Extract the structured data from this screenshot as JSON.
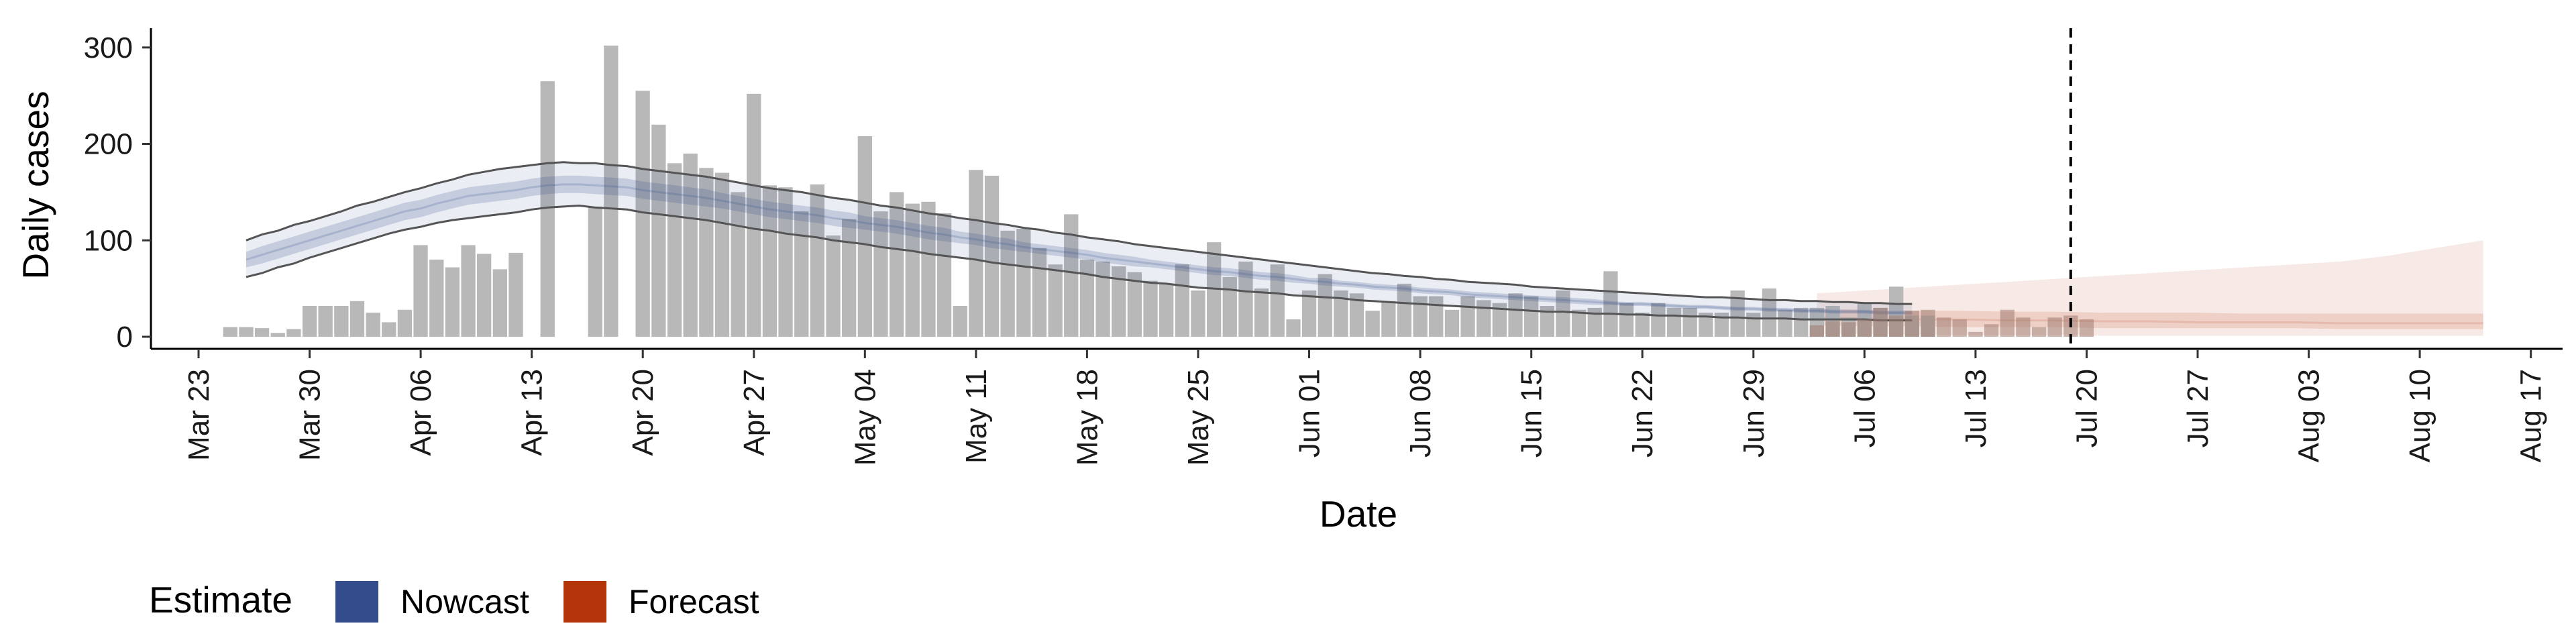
{
  "chart_data": {
    "type": "bar",
    "xlabel": "Date",
    "ylabel": "Daily cases",
    "ylim": [
      0,
      320
    ],
    "xlim": [
      "2020-03-20",
      "2020-08-19"
    ],
    "x_ticks": [
      "Mar 23",
      "Mar 30",
      "Apr 06",
      "Apr 13",
      "Apr 20",
      "Apr 27",
      "May 04",
      "May 11",
      "May 18",
      "May 25",
      "Jun 01",
      "Jun 08",
      "Jun 15",
      "Jun 22",
      "Jun 29",
      "Jul 06",
      "Jul 13",
      "Jul 20",
      "Jul 27",
      "Aug 03",
      "Aug 10",
      "Aug 17"
    ],
    "x_tick_dates": [
      "2020-03-23",
      "2020-03-30",
      "2020-04-06",
      "2020-04-13",
      "2020-04-20",
      "2020-04-27",
      "2020-05-04",
      "2020-05-11",
      "2020-05-18",
      "2020-05-25",
      "2020-06-01",
      "2020-06-08",
      "2020-06-15",
      "2020-06-22",
      "2020-06-29",
      "2020-07-06",
      "2020-07-13",
      "2020-07-20",
      "2020-07-27",
      "2020-08-03",
      "2020-08-10",
      "2020-08-17"
    ],
    "y_ticks": [
      0,
      100,
      200,
      300
    ],
    "vline_date": "2020-07-19",
    "bars": {
      "start_date": "2020-03-25",
      "values": [
        10,
        10,
        9,
        4,
        8,
        32,
        32,
        32,
        37,
        25,
        15,
        28,
        95,
        80,
        72,
        95,
        86,
        70,
        87,
        0,
        265,
        0,
        0,
        135,
        302,
        0,
        255,
        220,
        180,
        190,
        175,
        170,
        150,
        252,
        157,
        155,
        130,
        158,
        105,
        122,
        208,
        130,
        150,
        138,
        140,
        128,
        32,
        173,
        167,
        110,
        112,
        92,
        75,
        127,
        80,
        78,
        73,
        67,
        58,
        55,
        75,
        48,
        98,
        62,
        78,
        50,
        75,
        18,
        48,
        65,
        48,
        45,
        27,
        37,
        55,
        42,
        42,
        28,
        42,
        38,
        35,
        45,
        42,
        32,
        48,
        28,
        30,
        68,
        35,
        25,
        35,
        30,
        30,
        25,
        25,
        48,
        25,
        50,
        28,
        30,
        30,
        32,
        20,
        35,
        30,
        52,
        22,
        22
      ],
      "forecast_start_date": "2020-07-03",
      "forecast_values": [
        12,
        16,
        15,
        18,
        30,
        22,
        27,
        28,
        20,
        18,
        5,
        13,
        28,
        20,
        10,
        20,
        22,
        18
      ]
    },
    "series": [
      {
        "name": "Nowcast",
        "color": "#334D8C",
        "start_date": "2020-03-26",
        "step_days": 1,
        "median": [
          80,
          85,
          90,
          95,
          100,
          105,
          110,
          115,
          120,
          125,
          130,
          133,
          138,
          142,
          146,
          148,
          150,
          152,
          155,
          157,
          158,
          158,
          157,
          156,
          155,
          152,
          150,
          148,
          146,
          144,
          141,
          138,
          135,
          132,
          130,
          128,
          126,
          123,
          121,
          118,
          116,
          114,
          111,
          108,
          106,
          103,
          101,
          98,
          96,
          93,
          91,
          89,
          87,
          85,
          82,
          80,
          78,
          76,
          74,
          72,
          70,
          68,
          67,
          65,
          63,
          62,
          60,
          58,
          57,
          55,
          54,
          52,
          51,
          50,
          48,
          47,
          46,
          44,
          43,
          42,
          41,
          40,
          39,
          38,
          37,
          36,
          35,
          34,
          34,
          33,
          32,
          31,
          31,
          30,
          29,
          29,
          28,
          28,
          27,
          27,
          26,
          26,
          26,
          25,
          25,
          25
        ],
        "inner_lo": [
          72,
          76,
          81,
          86,
          91,
          96,
          101,
          106,
          111,
          116,
          121,
          124,
          129,
          133,
          137,
          139,
          141,
          143,
          146,
          148,
          149,
          149,
          148,
          147,
          146,
          143,
          141,
          139,
          137,
          135,
          133,
          130,
          127,
          124,
          122,
          120,
          118,
          115,
          113,
          111,
          109,
          107,
          104,
          101,
          99,
          97,
          95,
          92,
          90,
          88,
          86,
          84,
          82,
          80,
          77,
          75,
          73,
          72,
          70,
          68,
          66,
          64,
          63,
          61,
          59,
          58,
          56,
          55,
          53,
          52,
          51,
          49,
          48,
          47,
          45,
          44,
          43,
          41,
          40,
          39,
          38,
          37,
          36,
          35,
          34,
          33,
          33,
          32,
          32,
          31,
          30,
          29,
          29,
          28,
          27,
          27,
          26,
          26,
          25,
          25,
          24,
          24,
          24,
          23,
          23,
          23
        ],
        "inner_hi": [
          88,
          94,
          99,
          104,
          109,
          114,
          119,
          124,
          129,
          134,
          139,
          142,
          147,
          151,
          155,
          157,
          159,
          161,
          164,
          166,
          167,
          167,
          166,
          165,
          164,
          161,
          159,
          157,
          155,
          153,
          149,
          146,
          143,
          140,
          138,
          136,
          134,
          131,
          129,
          125,
          123,
          121,
          118,
          115,
          113,
          109,
          107,
          104,
          102,
          98,
          96,
          94,
          92,
          90,
          87,
          85,
          83,
          80,
          78,
          76,
          74,
          72,
          71,
          69,
          67,
          66,
          64,
          61,
          61,
          58,
          57,
          55,
          54,
          53,
          51,
          50,
          49,
          47,
          46,
          45,
          44,
          43,
          42,
          41,
          40,
          39,
          37,
          36,
          36,
          35,
          34,
          33,
          33,
          32,
          31,
          31,
          30,
          30,
          29,
          29,
          28,
          28,
          28,
          27,
          27,
          27
        ],
        "outer_lo": [
          62,
          66,
          72,
          76,
          82,
          87,
          92,
          97,
          102,
          107,
          111,
          114,
          118,
          121,
          123,
          125,
          127,
          129,
          132,
          134,
          135,
          136,
          134,
          133,
          132,
          129,
          127,
          125,
          123,
          121,
          118,
          115,
          112,
          110,
          107,
          105,
          103,
          100,
          98,
          96,
          93,
          91,
          89,
          86,
          84,
          82,
          80,
          77,
          75,
          73,
          71,
          69,
          67,
          65,
          62,
          60,
          58,
          56,
          55,
          53,
          51,
          50,
          49,
          47,
          46,
          45,
          43,
          42,
          41,
          40,
          38,
          37,
          36,
          35,
          34,
          33,
          32,
          31,
          30,
          29,
          28,
          27,
          26,
          26,
          25,
          24,
          24,
          23,
          23,
          22,
          22,
          21,
          21,
          20,
          20,
          19,
          19,
          19,
          18,
          18,
          18,
          18,
          18,
          17,
          17,
          17
        ],
        "outer_hi": [
          100,
          106,
          110,
          116,
          120,
          125,
          130,
          136,
          140,
          145,
          150,
          154,
          159,
          163,
          168,
          171,
          174,
          176,
          178,
          180,
          181,
          180,
          180,
          178,
          177,
          174,
          172,
          170,
          168,
          166,
          163,
          160,
          157,
          154,
          152,
          150,
          147,
          144,
          142,
          139,
          136,
          134,
          131,
          128,
          126,
          123,
          121,
          118,
          116,
          113,
          111,
          108,
          106,
          103,
          101,
          99,
          96,
          94,
          92,
          90,
          88,
          86,
          84,
          82,
          80,
          78,
          76,
          74,
          72,
          70,
          68,
          66,
          65,
          63,
          62,
          60,
          59,
          57,
          56,
          55,
          54,
          52,
          51,
          50,
          49,
          48,
          47,
          46,
          45,
          44,
          43,
          42,
          41,
          41,
          40,
          39,
          38,
          38,
          37,
          37,
          36,
          36,
          35,
          35,
          34,
          34
        ]
      },
      {
        "name": "Forecast",
        "color": "#B5350B",
        "start_date": "2020-07-03",
        "step_days": 3,
        "median": [
          20,
          19,
          18,
          18,
          17,
          17,
          16,
          16,
          15,
          15,
          15,
          14,
          14,
          14,
          14
        ],
        "inner_lo": [
          12,
          11,
          11,
          10,
          10,
          10,
          9,
          9,
          9,
          9,
          9,
          8,
          8,
          8,
          8
        ],
        "inner_hi": [
          29,
          28,
          27,
          27,
          26,
          26,
          25,
          25,
          25,
          24,
          24,
          24,
          24,
          24,
          24
        ],
        "outer_lo": [
          3,
          3,
          2,
          2,
          2,
          2,
          1,
          1,
          1,
          1,
          1,
          1,
          1,
          1,
          1
        ],
        "outer_hi": [
          45,
          48,
          51,
          54,
          57,
          60,
          63,
          66,
          69,
          72,
          75,
          78,
          84,
          92,
          100
        ]
      }
    ],
    "legend": {
      "title": "Estimate",
      "entries": [
        {
          "label": "Nowcast",
          "color": "#334D8C"
        },
        {
          "label": "Forecast",
          "color": "#B5350B"
        }
      ],
      "position": "bottom-left"
    },
    "grid": false
  }
}
